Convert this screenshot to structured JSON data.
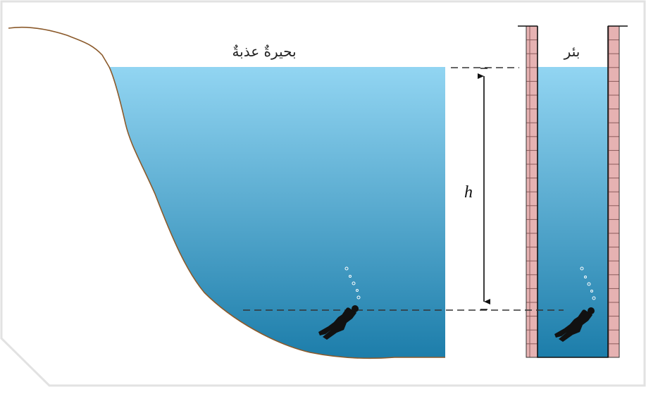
{
  "labels": {
    "lake": "بحيرةٌ عذبةٌ",
    "well": "بئر",
    "depth": "h"
  }
}
